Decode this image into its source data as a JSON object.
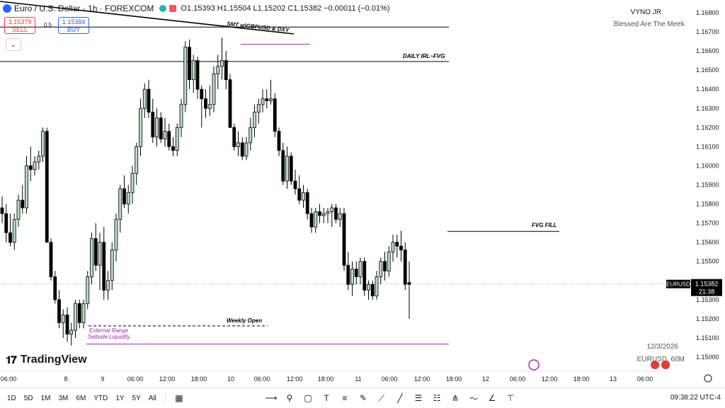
{
  "header": {
    "title": "Euro / U.S. Dollar · 1h · FOREXCOM",
    "ohlc": "O1.15393 H1.15504 L1.15202 C1.15382 −0.00011 (−0.01%)",
    "sell_price": "1.15379",
    "sell_label": "SELL",
    "spread": "0.5",
    "buy_price": "1.15384",
    "buy_label": "BUY",
    "collapse_icon": "chevron-down-icon"
  },
  "watermark": {
    "author": "VYNO JR",
    "tagline": "Blessed Are The Meek",
    "date": "12/3/2026",
    "symbol_tf": "EURUSD, 60M"
  },
  "brand": {
    "name": "TradingView"
  },
  "toolbar": {
    "timeframes": [
      "1D",
      "5D",
      "1M",
      "3M",
      "6M",
      "YTD",
      "1Y",
      "5Y",
      "All"
    ],
    "clock": "09:38:22 UTC-4"
  },
  "chart_data": {
    "type": "candlestick",
    "symbol": "EURUSD",
    "interval": "1h",
    "ylim": [
      1.15,
      1.168
    ],
    "y_ticks": [
      1.168,
      1.167,
      1.166,
      1.165,
      1.164,
      1.163,
      1.162,
      1.161,
      1.16,
      1.159,
      1.158,
      1.157,
      1.156,
      1.155,
      1.153,
      1.152,
      1.151,
      1.15
    ],
    "x_ticks": [
      "06:00",
      "8",
      "9",
      "06:00",
      "12:00",
      "18:00",
      "10",
      "06:00",
      "12:00",
      "18:00",
      "11",
      "06:00",
      "12:00",
      "18:00",
      "12",
      "06:00",
      "12:00",
      "18:00",
      "13",
      "06:00"
    ],
    "last_price": {
      "symbol": "EURUSD",
      "price": "1.15382",
      "countdown": "21:38"
    },
    "colors": {
      "up": "#b8dcc0",
      "down": "#000000",
      "annotation": "#9c27b0",
      "line": "#000000"
    },
    "candles": [
      [
        1.1578,
        1.1584,
        1.157,
        1.1575
      ],
      [
        1.1575,
        1.158,
        1.156,
        1.1565
      ],
      [
        1.1565,
        1.1575,
        1.1558,
        1.156
      ],
      [
        1.156,
        1.1575,
        1.1556,
        1.1572
      ],
      [
        1.1572,
        1.1585,
        1.1568,
        1.1582
      ],
      [
        1.1582,
        1.159,
        1.1575,
        1.1578
      ],
      [
        1.1578,
        1.1605,
        1.1575,
        1.16
      ],
      [
        1.16,
        1.161,
        1.1592,
        1.1598
      ],
      [
        1.1598,
        1.1605,
        1.1595,
        1.1602
      ],
      [
        1.1602,
        1.1608,
        1.1598,
        1.1605
      ],
      [
        1.1605,
        1.162,
        1.1602,
        1.1618
      ],
      [
        1.1618,
        1.162,
        1.156,
        1.156
      ],
      [
        1.156,
        1.1562,
        1.154,
        1.1542
      ],
      [
        1.1542,
        1.1545,
        1.1528,
        1.153
      ],
      [
        1.153,
        1.1535,
        1.1515,
        1.1518
      ],
      [
        1.1518,
        1.1525,
        1.151,
        1.1522
      ],
      [
        1.1522,
        1.1526,
        1.1508,
        1.1512
      ],
      [
        1.1512,
        1.1518,
        1.1506,
        1.1514
      ],
      [
        1.1514,
        1.153,
        1.151,
        1.1528
      ],
      [
        1.1528,
        1.153,
        1.1515,
        1.1518
      ],
      [
        1.1518,
        1.153,
        1.1515,
        1.1528
      ],
      [
        1.1528,
        1.1545,
        1.1525,
        1.1542
      ],
      [
        1.1542,
        1.1565,
        1.1538,
        1.1562
      ],
      [
        1.1562,
        1.157,
        1.1545,
        1.1548
      ],
      [
        1.1548,
        1.1565,
        1.1535,
        1.156
      ],
      [
        1.156,
        1.1568,
        1.153,
        1.1535
      ],
      [
        1.1535,
        1.1545,
        1.153,
        1.154
      ],
      [
        1.154,
        1.156,
        1.1535,
        1.1556
      ],
      [
        1.1556,
        1.1575,
        1.155,
        1.1572
      ],
      [
        1.1572,
        1.159,
        1.1565,
        1.1588
      ],
      [
        1.1588,
        1.1595,
        1.1578,
        1.158
      ],
      [
        1.158,
        1.159,
        1.1575,
        1.1586
      ],
      [
        1.1586,
        1.16,
        1.158,
        1.1596
      ],
      [
        1.1596,
        1.1612,
        1.159,
        1.161
      ],
      [
        1.161,
        1.1635,
        1.1605,
        1.163
      ],
      [
        1.163,
        1.1643,
        1.1625,
        1.164
      ],
      [
        1.164,
        1.1645,
        1.1625,
        1.1628
      ],
      [
        1.1628,
        1.1635,
        1.1612,
        1.1615
      ],
      [
        1.1615,
        1.163,
        1.161,
        1.1625
      ],
      [
        1.1625,
        1.1628,
        1.1612,
        1.1614
      ],
      [
        1.1614,
        1.1625,
        1.161,
        1.1618
      ],
      [
        1.1618,
        1.1622,
        1.1608,
        1.161
      ],
      [
        1.161,
        1.1615,
        1.1605,
        1.1608
      ],
      [
        1.1608,
        1.1622,
        1.1605,
        1.162
      ],
      [
        1.162,
        1.1635,
        1.1615,
        1.1632
      ],
      [
        1.1632,
        1.1665,
        1.1628,
        1.1662
      ],
      [
        1.1662,
        1.1666,
        1.164,
        1.1645
      ],
      [
        1.1645,
        1.1658,
        1.1638,
        1.1655
      ],
      [
        1.1655,
        1.1657,
        1.1635,
        1.164
      ],
      [
        1.164,
        1.1642,
        1.162,
        1.1635
      ],
      [
        1.1635,
        1.164,
        1.1625,
        1.163
      ],
      [
        1.163,
        1.1642,
        1.1626,
        1.1632
      ],
      [
        1.1632,
        1.1652,
        1.1628,
        1.1648
      ],
      [
        1.1648,
        1.1658,
        1.164,
        1.1652
      ],
      [
        1.1652,
        1.1667,
        1.1645,
        1.1655
      ],
      [
        1.1655,
        1.166,
        1.164,
        1.1645
      ],
      [
        1.1645,
        1.1648,
        1.162,
        1.162
      ],
      [
        1.162,
        1.1622,
        1.1608,
        1.161
      ],
      [
        1.161,
        1.1618,
        1.1605,
        1.1612
      ],
      [
        1.1612,
        1.1615,
        1.1603,
        1.1605
      ],
      [
        1.1605,
        1.1615,
        1.1603,
        1.1612
      ],
      [
        1.1612,
        1.1625,
        1.1608,
        1.162
      ],
      [
        1.162,
        1.1632,
        1.1615,
        1.1628
      ],
      [
        1.1628,
        1.1635,
        1.1622,
        1.1632
      ],
      [
        1.1632,
        1.164,
        1.1628,
        1.1635
      ],
      [
        1.1635,
        1.164,
        1.163,
        1.1634
      ],
      [
        1.1634,
        1.1645,
        1.1632,
        1.1635
      ],
      [
        1.1635,
        1.1638,
        1.1615,
        1.1618
      ],
      [
        1.1618,
        1.162,
        1.1605,
        1.1608
      ],
      [
        1.1608,
        1.1612,
        1.159,
        1.1592
      ],
      [
        1.1592,
        1.161,
        1.1588,
        1.1605
      ],
      [
        1.1605,
        1.1607,
        1.159,
        1.1592
      ],
      [
        1.1592,
        1.1598,
        1.1585,
        1.1588
      ],
      [
        1.1588,
        1.1595,
        1.158,
        1.1582
      ],
      [
        1.1582,
        1.159,
        1.1578,
        1.1586
      ],
      [
        1.1586,
        1.1588,
        1.1572,
        1.1575
      ],
      [
        1.1575,
        1.1578,
        1.1565,
        1.1568
      ],
      [
        1.1568,
        1.1578,
        1.1565,
        1.1576
      ],
      [
        1.1576,
        1.158,
        1.157,
        1.1574
      ],
      [
        1.1574,
        1.1578,
        1.157,
        1.1575
      ],
      [
        1.1575,
        1.1578,
        1.157,
        1.1576
      ],
      [
        1.1576,
        1.158,
        1.1568,
        1.1578
      ],
      [
        1.1578,
        1.158,
        1.157,
        1.1572
      ],
      [
        1.1572,
        1.1578,
        1.1568,
        1.1575
      ],
      [
        1.1575,
        1.1578,
        1.1545,
        1.1548
      ],
      [
        1.1548,
        1.1555,
        1.1535,
        1.1538
      ],
      [
        1.1538,
        1.155,
        1.1532,
        1.1546
      ],
      [
        1.1546,
        1.155,
        1.1538,
        1.1542
      ],
      [
        1.1542,
        1.1552,
        1.1538,
        1.155
      ],
      [
        1.155,
        1.1552,
        1.1532,
        1.1535
      ],
      [
        1.1535,
        1.154,
        1.153,
        1.1538
      ],
      [
        1.1538,
        1.154,
        1.153,
        1.1532
      ],
      [
        1.1532,
        1.1545,
        1.153,
        1.1542
      ],
      [
        1.1542,
        1.1552,
        1.1538,
        1.155
      ],
      [
        1.155,
        1.1555,
        1.154,
        1.1545
      ],
      [
        1.1545,
        1.1558,
        1.1542,
        1.1555
      ],
      [
        1.1555,
        1.1564,
        1.155,
        1.156
      ],
      [
        1.156,
        1.1564,
        1.1552,
        1.1558
      ],
      [
        1.1558,
        1.1566,
        1.155,
        1.1556
      ],
      [
        1.1556,
        1.156,
        1.1535,
        1.1538
      ],
      [
        1.1539,
        1.155,
        1.152,
        1.1538
      ]
    ],
    "lines": [
      {
        "label": "SMT w\\GBPUSD & DXY",
        "y1": 1.168,
        "y2": 1.16695
      },
      {
        "label": "DAILY IRL~FVG",
        "y": 1.16545
      },
      {
        "label": "FVG FILL",
        "y": 1.15657
      },
      {
        "label": "Weekly Open",
        "y": 1.15163
      },
      {
        "label": "External Range Sellside Liquidity",
        "y": 1.15068
      },
      {
        "label": "",
        "y": 1.16725
      },
      {
        "label": "",
        "y": 1.16635
      }
    ],
    "annotation_labels": [
      "External Range",
      "Sellside Liquidity"
    ]
  }
}
